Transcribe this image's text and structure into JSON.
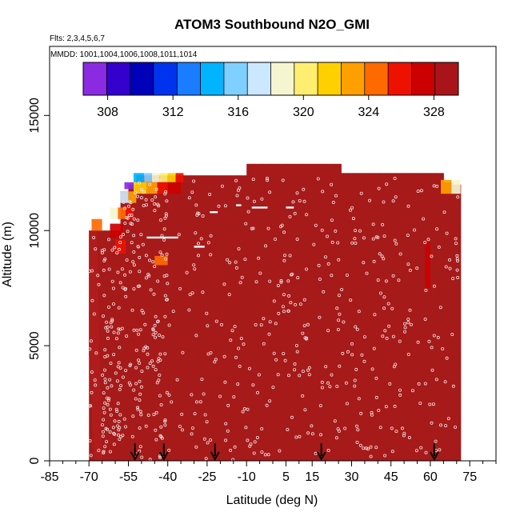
{
  "chart_data": {
    "type": "heatmap",
    "title": "ATOM3 Southbound N2O_GMI",
    "subtitle_flights": "Flts: 2,3,4,5,6,7",
    "subtitle_dates": "MMDD: 1001,1004,1006,1008,1011,1014",
    "xlabel": "Latitude (deg N)",
    "ylabel": "Altitude (m)",
    "xlim": [
      -85,
      85
    ],
    "ylim": [
      0,
      18000
    ],
    "x_ticks": [
      -85,
      -70,
      -55,
      -40,
      -25,
      -10,
      5,
      15,
      30,
      45,
      60,
      75
    ],
    "x_tick_labels": [
      "-85",
      "-70",
      "-55",
      "-40",
      "-25",
      "-10",
      "5",
      "15",
      "30",
      "45",
      "60",
      "75"
    ],
    "x_minor_ticks": [
      -80,
      -75,
      -65,
      -60,
      -50,
      -45,
      -35,
      -30,
      -20,
      -15,
      -5,
      0,
      10,
      20,
      25,
      35,
      40,
      50,
      55,
      65,
      70,
      80,
      85
    ],
    "y_ticks": [
      0,
      5000,
      10000,
      15000
    ],
    "y_tick_labels": [
      "0",
      "5000",
      "10000",
      "15000"
    ],
    "colorbar": {
      "min": 306.5,
      "max": 329.5,
      "tick_values": [
        308,
        312,
        316,
        320,
        324,
        328
      ],
      "tick_labels": [
        "308",
        "312",
        "316",
        "320",
        "324",
        "328"
      ],
      "boundaries": [
        306.5,
        308.5,
        310.5,
        312.5,
        314.5,
        316.5,
        318.5,
        320.5,
        322.5,
        324.5,
        326.5,
        328.5,
        329.5
      ],
      "colors": [
        "#8a2be2",
        "#3300cc",
        "#0000b8",
        "#0033ee",
        "#1a7cff",
        "#00b4ff",
        "#7fcfff",
        "#cce8ff",
        "#f5f5d0",
        "#ffee70",
        "#ffd000",
        "#ffa000",
        "#ff6a00",
        "#ee1100",
        "#cc0000",
        "#a8141a"
      ]
    },
    "curtain_fill_color": "#a61a1a",
    "curtain": {
      "lat_edges": [
        -70,
        -67,
        -64,
        -61,
        -58,
        -55,
        -52,
        -49,
        -46,
        -43,
        -40,
        -37,
        -34,
        -31,
        -28,
        -25,
        -22,
        -19,
        -16,
        -13,
        -10,
        -7,
        -4,
        -1,
        2,
        5,
        8,
        11,
        14,
        17,
        20,
        23,
        26,
        29,
        32,
        35,
        38,
        41,
        44,
        47,
        50,
        53,
        56,
        59,
        62,
        65,
        68,
        71.5
      ],
      "top_alt": [
        10000,
        10000,
        10000,
        10000,
        11700,
        12000,
        12400,
        12400,
        12400,
        12400,
        12400,
        12400,
        12400,
        12400,
        12400,
        12400,
        12400,
        12400,
        12400,
        12400,
        12900,
        12900,
        12900,
        12900,
        12900,
        12900,
        12900,
        12900,
        12900,
        12900,
        12900,
        12900,
        12500,
        12500,
        12500,
        12500,
        12500,
        12500,
        12500,
        12500,
        12500,
        12500,
        12500,
        12500,
        12500,
        12100,
        12000
      ]
    },
    "anomalies": [
      {
        "lat": [
          -56.5,
          -53
        ],
        "alt": [
          12100,
          11800
        ],
        "value": 307
      },
      {
        "lat": [
          -53,
          -49
        ],
        "alt": [
          12500,
          12100
        ],
        "value": 314
      },
      {
        "lat": [
          -49,
          -46
        ],
        "alt": [
          12500,
          12100
        ],
        "value": 316
      },
      {
        "lat": [
          -46,
          -43
        ],
        "alt": [
          12500,
          12100
        ],
        "value": 318
      },
      {
        "lat": [
          -43,
          -40
        ],
        "alt": [
          12500,
          12100
        ],
        "value": 320
      },
      {
        "lat": [
          -40,
          -37
        ],
        "alt": [
          12500,
          12100
        ],
        "value": 322
      },
      {
        "lat": [
          -37,
          -34
        ],
        "alt": [
          12500,
          12100
        ],
        "value": 326
      },
      {
        "lat": [
          -53,
          -48
        ],
        "alt": [
          12100,
          11600
        ],
        "value": 321
      },
      {
        "lat": [
          -48,
          -44
        ],
        "alt": [
          12100,
          11600
        ],
        "value": 323
      },
      {
        "lat": [
          -44,
          -40
        ],
        "alt": [
          12100,
          11600
        ],
        "value": 326
      },
      {
        "lat": [
          -40,
          -35
        ],
        "alt": [
          12100,
          11600
        ],
        "value": 327
      },
      {
        "lat": [
          -58,
          -55
        ],
        "alt": [
          11700,
          11200
        ],
        "value": 317
      },
      {
        "lat": [
          -55,
          -52
        ],
        "alt": [
          11700,
          11200
        ],
        "value": 323
      },
      {
        "lat": [
          -62,
          -59
        ],
        "alt": [
          11000,
          10500
        ],
        "value": 319
      },
      {
        "lat": [
          -59,
          -56
        ],
        "alt": [
          11000,
          10500
        ],
        "value": 324
      },
      {
        "lat": [
          -56,
          -53
        ],
        "alt": [
          11000,
          10500
        ],
        "value": 326
      },
      {
        "lat": [
          -69,
          -65
        ],
        "alt": [
          10500,
          10000
        ],
        "value": 325
      },
      {
        "lat": [
          -62,
          -57
        ],
        "alt": [
          10300,
          9700
        ],
        "value": 327
      },
      {
        "lat": [
          -60,
          -56
        ],
        "alt": [
          9600,
          9000
        ],
        "value": 326
      },
      {
        "lat": [
          -45,
          -40
        ],
        "alt": [
          8900,
          8500
        ],
        "value": 325
      },
      {
        "lat": [
          64,
          68
        ],
        "alt": [
          12200,
          11600
        ],
        "value": 323
      },
      {
        "lat": [
          68,
          71.5
        ],
        "alt": [
          12200,
          11600
        ],
        "value": 318
      },
      {
        "lat": [
          58,
          60
        ],
        "alt": [
          9500,
          7500
        ],
        "value": 327
      }
    ],
    "arrows_lat": [
      -52.5,
      -41.5,
      -22,
      18.5,
      61.5
    ],
    "arrow_alt_top": 750,
    "obs_point_color": "#f2dede",
    "obs_region": {
      "lat": [
        -70,
        71
      ],
      "alt": [
        50,
        12500
      ]
    }
  }
}
